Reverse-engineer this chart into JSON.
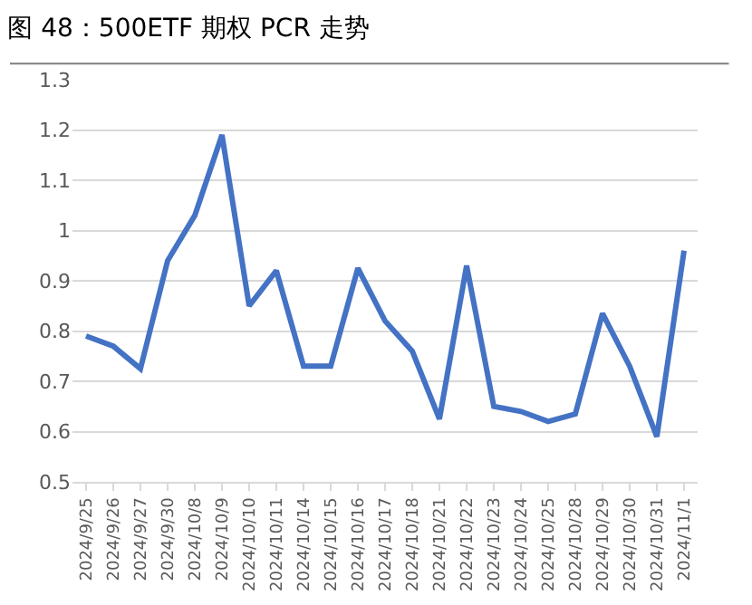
{
  "chart_data": {
    "type": "line",
    "title": "图 48：500ETF 期权 PCR 走势",
    "categories": [
      "2024/9/25",
      "2024/9/26",
      "2024/9/27",
      "2024/9/30",
      "2024/10/8",
      "2024/10/9",
      "2024/10/10",
      "2024/10/11",
      "2024/10/14",
      "2024/10/15",
      "2024/10/16",
      "2024/10/17",
      "2024/10/18",
      "2024/10/21",
      "2024/10/22",
      "2024/10/23",
      "2024/10/24",
      "2024/10/25",
      "2024/10/28",
      "2024/10/29",
      "2024/10/30",
      "2024/10/31",
      "2024/11/1"
    ],
    "series": [
      {
        "color": "#4472c4",
        "values": [
          0.79,
          0.77,
          0.725,
          0.94,
          1.03,
          1.19,
          0.85,
          0.92,
          0.73,
          0.73,
          0.925,
          0.82,
          0.76,
          0.625,
          0.93,
          0.65,
          0.64,
          0.62,
          0.635,
          0.835,
          0.73,
          0.59,
          0.96
        ]
      }
    ],
    "ylim": [
      0.5,
      1.3
    ],
    "yticks": [
      0.5,
      0.6,
      0.7,
      0.8,
      0.9,
      1,
      1.1,
      1.2,
      1.3
    ],
    "grid": "y",
    "marker": "none",
    "line_style": "solid"
  }
}
